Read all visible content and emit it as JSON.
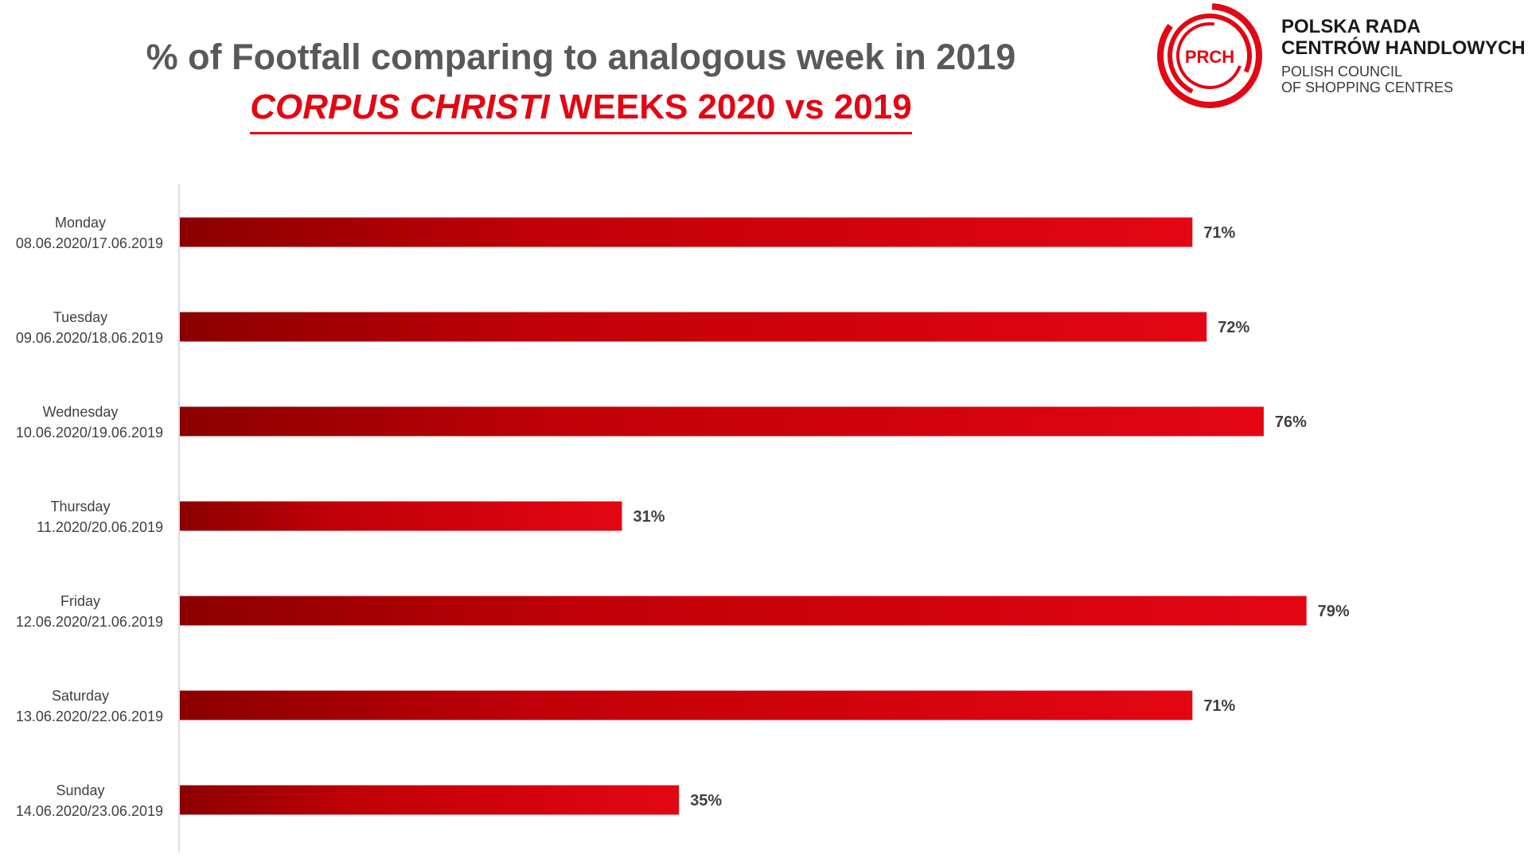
{
  "header": {
    "title_line1": "% of Footfall comparing to analogous week in 2019",
    "title_line2_italic": "CORPUS CHRISTI",
    "title_line2_rest": " WEEKS 2020 vs 2019"
  },
  "logo": {
    "badge": "PRCH",
    "name_line1": "POLSKA RADA",
    "name_line2": "CENTRÓW HANDLOWYCH",
    "sub_line1": "POLISH COUNCIL",
    "sub_line2": "OF SHOPPING CENTRES",
    "color": "#e30613"
  },
  "chart_data": {
    "type": "bar",
    "orientation": "horizontal",
    "categories": [
      [
        "Monday",
        "08.06.2020/17.06.2019"
      ],
      [
        "Tuesday",
        "09.06.2020/18.06.2019"
      ],
      [
        "Wednesday",
        "10.06.2020/19.06.2019"
      ],
      [
        "Thursday",
        "11.2020/20.06.2019"
      ],
      [
        "Friday",
        "12.06.2020/21.06.2019"
      ],
      [
        "Saturday",
        "13.06.2020/22.06.2019"
      ],
      [
        "Sunday",
        "14.06.2020/23.06.2019"
      ]
    ],
    "values": [
      71,
      72,
      76,
      31,
      79,
      71,
      35
    ],
    "value_labels": [
      "71%",
      "72%",
      "76%",
      "31%",
      "79%",
      "71%",
      "35%"
    ],
    "xlim": [
      0,
      100
    ],
    "grid": false,
    "bar_color_dark": "#8b0000",
    "bar_color_light": "#e30613"
  }
}
